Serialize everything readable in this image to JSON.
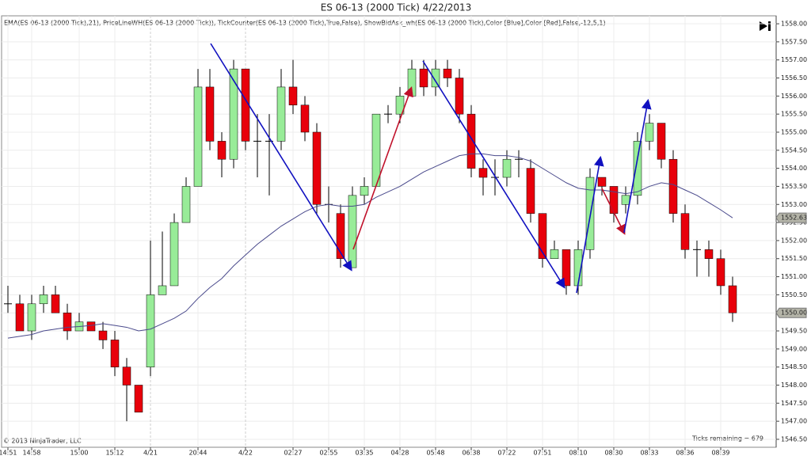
{
  "chart_data": {
    "type": "candlestick",
    "title": "ES 06-13 (2000 Tick)  4/22/2013",
    "subtitle": "EMA(ES 06-13 (2000 Tick),21), PriceLineWH(ES 06-13 (2000 Tick)), TickCounter(ES 06-13 (2000 Tick),True,False), ShowBidAsk_wh(ES 06-13 (2000 Tick),Color [Blue],Color [Red],False,-12,5,1)",
    "copyright": "© 2013 NinjaTrader, LLC",
    "ticks_remaining": "Ticks remaining = 679",
    "categories": [
      "14:51",
      null,
      "14:58",
      null,
      null,
      null,
      "15:00",
      null,
      null,
      "15:12",
      null,
      null,
      "4/21",
      null,
      null,
      null,
      "20:44",
      null,
      null,
      null,
      "4/22",
      null,
      null,
      null,
      "02:27",
      null,
      null,
      "02:55",
      null,
      null,
      "03:35",
      null,
      null,
      "04:28",
      null,
      null,
      "05:48",
      null,
      null,
      "06:38",
      null,
      null,
      "07:22",
      null,
      null,
      "07:51",
      null,
      null,
      "08:10",
      null,
      null,
      "08:30",
      null,
      null,
      "08:33",
      null,
      null,
      "08:36",
      null,
      null,
      "08:39",
      null
    ],
    "open": [
      1550.25,
      1550.25,
      1549.5,
      1550.25,
      1550.5,
      1550.0,
      1549.5,
      1549.75,
      1549.5,
      1549.25,
      1548.5,
      1548.0,
      1548.5,
      1550.5,
      1550.75,
      1552.5,
      1553.5,
      1556.25,
      1554.75,
      1554.25,
      1556.75,
      1554.75,
      1554.75,
      1554.75,
      1556.25,
      1555.75,
      1555.0,
      1553.0,
      1552.75,
      1551.25,
      1553.25,
      1553.5,
      1555.5,
      1555.5,
      1556.0,
      1556.75,
      1556.25,
      1556.75,
      1556.5,
      1555.5,
      1554.0,
      1553.75,
      1553.75,
      1554.25,
      1554.0,
      1552.75,
      1551.5,
      1551.75,
      1550.75,
      1551.75,
      1553.75,
      1553.5,
      1553.0,
      1553.25,
      1554.75,
      1555.25,
      1554.25,
      1552.75,
      1551.75,
      1551.75,
      1551.5,
      1550.75
    ],
    "high": [
      1550.75,
      1550.5,
      1550.5,
      1550.75,
      1550.75,
      1550.25,
      1550.0,
      1549.75,
      1549.75,
      1549.5,
      1548.75,
      1548.0,
      1552.0,
      1552.25,
      1552.75,
      1553.75,
      1556.75,
      1556.75,
      1555.0,
      1557.0,
      1556.75,
      1555.5,
      1555.5,
      1556.75,
      1557.0,
      1556.0,
      1555.25,
      1553.5,
      1553.0,
      1553.5,
      1553.75,
      1555.5,
      1555.75,
      1556.25,
      1557.0,
      1557.0,
      1557.0,
      1557.0,
      1556.75,
      1555.75,
      1554.25,
      1554.25,
      1554.5,
      1554.5,
      1554.25,
      1552.75,
      1552.0,
      1551.75,
      1552.0,
      1554.0,
      1553.75,
      1553.5,
      1553.5,
      1555.0,
      1555.5,
      1555.25,
      1554.5,
      1553.0,
      1552.0,
      1552.0,
      1551.75,
      1551.0
    ],
    "low": [
      1550.0,
      1549.5,
      1549.25,
      1550.0,
      1550.0,
      1549.25,
      1549.5,
      1549.5,
      1549.0,
      1548.25,
      1547.0,
      1547.25,
      1548.25,
      1550.5,
      1550.75,
      1552.5,
      1553.5,
      1554.5,
      1553.75,
      1554.0,
      1554.5,
      1553.75,
      1553.25,
      1554.5,
      1555.5,
      1554.75,
      1552.75,
      1552.5,
      1551.25,
      1551.25,
      1553.0,
      1553.5,
      1555.25,
      1555.25,
      1556.0,
      1556.0,
      1556.0,
      1556.25,
      1555.25,
      1553.75,
      1553.25,
      1553.25,
      1553.5,
      1553.75,
      1552.5,
      1551.25,
      1551.5,
      1550.5,
      1550.5,
      1551.5,
      1553.25,
      1552.5,
      1552.75,
      1553.0,
      1554.5,
      1554.0,
      1552.5,
      1551.5,
      1551.0,
      1551.0,
      1550.5,
      1549.75
    ],
    "close": [
      1550.25,
      1549.5,
      1550.25,
      1550.5,
      1550.0,
      1549.5,
      1549.75,
      1549.5,
      1549.25,
      1548.5,
      1548.0,
      1547.25,
      1550.5,
      1550.75,
      1552.5,
      1553.5,
      1556.25,
      1554.75,
      1554.25,
      1556.75,
      1554.75,
      1554.75,
      1554.75,
      1556.25,
      1555.75,
      1555.0,
      1553.0,
      1553.0,
      1551.5,
      1553.25,
      1553.5,
      1555.5,
      1555.5,
      1556.0,
      1556.75,
      1556.25,
      1556.75,
      1556.5,
      1555.5,
      1554.0,
      1553.75,
      1553.75,
      1554.25,
      1554.25,
      1552.75,
      1551.5,
      1551.75,
      1550.75,
      1551.75,
      1553.75,
      1553.5,
      1552.75,
      1553.25,
      1554.75,
      1555.25,
      1554.25,
      1552.75,
      1551.75,
      1551.75,
      1551.5,
      1550.75,
      1550.0
    ],
    "up_color": "#98ec98",
    "down_color": "#e8000b",
    "ema": {
      "color": "#4a4a8c",
      "values": [
        1549.3,
        1549.35,
        1549.4,
        1549.5,
        1549.55,
        1549.6,
        1549.62,
        1549.65,
        1549.7,
        1549.65,
        1549.6,
        1549.5,
        1549.55,
        1549.7,
        1549.85,
        1550.05,
        1550.4,
        1550.7,
        1550.95,
        1551.3,
        1551.6,
        1551.9,
        1552.15,
        1552.4,
        1552.6,
        1552.8,
        1552.95,
        1553.0,
        1552.95,
        1552.95,
        1553.0,
        1553.2,
        1553.35,
        1553.5,
        1553.7,
        1553.9,
        1554.05,
        1554.2,
        1554.35,
        1554.4,
        1554.4,
        1554.35,
        1554.35,
        1554.3,
        1554.2,
        1554.0,
        1553.8,
        1553.6,
        1553.45,
        1553.4,
        1553.4,
        1553.35,
        1553.3,
        1553.35,
        1553.5,
        1553.6,
        1553.55,
        1553.4,
        1553.25,
        1553.05,
        1552.85,
        1552.63
      ]
    },
    "price_markers": [
      {
        "value": 1552.63,
        "label": "1552.63"
      },
      {
        "value": 1550.0,
        "label": "1550.00"
      }
    ],
    "ylim": [
      1546.28,
      1558.22
    ],
    "yticks": [
      {
        "value": 1546.5,
        "label": "1546.50"
      },
      {
        "value": 1547.0,
        "label": "1547.00"
      },
      {
        "value": 1547.5,
        "label": "1547.50"
      },
      {
        "value": 1548.0,
        "label": "1548.00"
      },
      {
        "value": 1548.5,
        "label": "1548.50"
      },
      {
        "value": 1549.0,
        "label": "1549.00"
      },
      {
        "value": 1549.5,
        "label": "1549.50"
      },
      {
        "value": 1550.0,
        "label": "1550.00"
      },
      {
        "value": 1550.5,
        "label": "1550.50"
      },
      {
        "value": 1551.0,
        "label": "1551.00"
      },
      {
        "value": 1551.5,
        "label": "1551.50"
      },
      {
        "value": 1552.0,
        "label": "1552.00"
      },
      {
        "value": 1552.5,
        "label": "1552.50"
      },
      {
        "value": 1553.0,
        "label": "1553.00"
      },
      {
        "value": 1553.5,
        "label": "1553.50"
      },
      {
        "value": 1554.0,
        "label": "1554.00"
      },
      {
        "value": 1554.5,
        "label": "1554.50"
      },
      {
        "value": 1555.0,
        "label": "1555.00"
      },
      {
        "value": 1555.5,
        "label": "1555.50"
      },
      {
        "value": 1556.0,
        "label": "1556.00"
      },
      {
        "value": 1556.5,
        "label": "1556.50"
      },
      {
        "value": 1557.0,
        "label": "1557.00"
      },
      {
        "value": 1557.5,
        "label": "1557.50"
      },
      {
        "value": 1558.0,
        "label": "1558.00"
      }
    ],
    "grid": true
  }
}
